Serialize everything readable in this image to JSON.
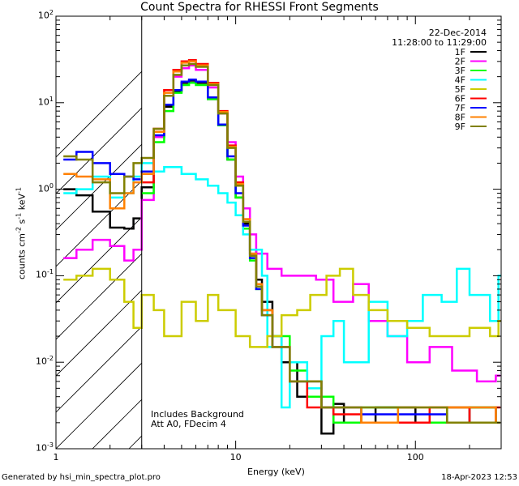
{
  "chart_data": {
    "type": "line",
    "title": "Count Spectra for RHESSI Front Segments",
    "xlabel": "Energy (keV)",
    "ylabel_parts": {
      "base": "counts cm",
      "exp1": "-2",
      "mid": " s",
      "exp2": "-1",
      "end": " keV",
      "exp3": "-1"
    },
    "xscale": "log",
    "yscale": "log",
    "xlim": [
      1,
      300
    ],
    "ylim": [
      0.001,
      100
    ],
    "x_ticks": [
      {
        "v": 1,
        "label": "1"
      },
      {
        "v": 10,
        "label": "10"
      },
      {
        "v": 100,
        "label": "100"
      }
    ],
    "y_ticks": [
      {
        "v": 0.001,
        "base": "10",
        "exp": "-3"
      },
      {
        "v": 0.01,
        "base": "10",
        "exp": "-2"
      },
      {
        "v": 0.1,
        "base": "10",
        "exp": "-1"
      },
      {
        "v": 1,
        "base": "10",
        "exp": "0"
      },
      {
        "v": 10,
        "base": "10",
        "exp": "1"
      },
      {
        "v": 100,
        "base": "10",
        "exp": "2"
      }
    ],
    "hatched_region_keV": [
      1,
      3
    ],
    "legend_position": "top-right",
    "series": [
      {
        "name": "1F",
        "color": "#000000",
        "values": [
          [
            1.1,
            1.0
          ],
          [
            1.3,
            0.85
          ],
          [
            1.6,
            0.55
          ],
          [
            2.0,
            0.36
          ],
          [
            2.4,
            0.35
          ],
          [
            2.7,
            0.46
          ],
          [
            3.0,
            1.05
          ],
          [
            3.5,
            4.0
          ],
          [
            4.0,
            9.0
          ],
          [
            4.5,
            13.5
          ],
          [
            5.0,
            17.0
          ],
          [
            5.5,
            18.0
          ],
          [
            6.0,
            17.0
          ],
          [
            7.0,
            11.0
          ],
          [
            8.0,
            5.5
          ],
          [
            9.0,
            2.2
          ],
          [
            10.0,
            0.8
          ],
          [
            11.0,
            0.4
          ],
          [
            12.0,
            0.2
          ],
          [
            13.0,
            0.09
          ],
          [
            14.0,
            0.05
          ],
          [
            16.0,
            0.02
          ],
          [
            18.0,
            0.01
          ],
          [
            22.0,
            0.004
          ],
          [
            30.0,
            0.0015
          ],
          [
            35.0,
            0.0033
          ],
          [
            40.0,
            0.002
          ],
          [
            60.0,
            0.003
          ],
          [
            100.0,
            0.002
          ],
          [
            200.0,
            0.003
          ],
          [
            280.0,
            0.002
          ]
        ]
      },
      {
        "name": "2F",
        "color": "#ff00ff",
        "values": [
          [
            1.1,
            0.16
          ],
          [
            1.3,
            0.2
          ],
          [
            1.6,
            0.26
          ],
          [
            2.0,
            0.22
          ],
          [
            2.4,
            0.15
          ],
          [
            2.7,
            0.2
          ],
          [
            3.0,
            0.75
          ],
          [
            3.5,
            4.0
          ],
          [
            4.0,
            12.0
          ],
          [
            4.5,
            20.0
          ],
          [
            5.0,
            25.0
          ],
          [
            5.5,
            27.0
          ],
          [
            6.0,
            24.0
          ],
          [
            7.0,
            15.0
          ],
          [
            8.0,
            7.5
          ],
          [
            9.0,
            3.5
          ],
          [
            10.0,
            1.4
          ],
          [
            11.0,
            0.6
          ],
          [
            12.0,
            0.3
          ],
          [
            13.0,
            0.18
          ],
          [
            15.0,
            0.12
          ],
          [
            18.0,
            0.1
          ],
          [
            22.0,
            0.1
          ],
          [
            28.0,
            0.09
          ],
          [
            35.0,
            0.05
          ],
          [
            45.0,
            0.08
          ],
          [
            55.0,
            0.03
          ],
          [
            70.0,
            0.02
          ],
          [
            90.0,
            0.01
          ],
          [
            120.0,
            0.015
          ],
          [
            160.0,
            0.008
          ],
          [
            220.0,
            0.006
          ],
          [
            280.0,
            0.007
          ]
        ]
      },
      {
        "name": "3F",
        "color": "#00ff00",
        "values": [
          [
            3.0,
            0.9
          ],
          [
            3.5,
            3.5
          ],
          [
            4.0,
            8.0
          ],
          [
            4.5,
            13.0
          ],
          [
            5.0,
            16.0
          ],
          [
            5.5,
            17.0
          ],
          [
            6.0,
            16.0
          ],
          [
            7.0,
            11.0
          ],
          [
            8.0,
            5.5
          ],
          [
            9.0,
            2.2
          ],
          [
            10.0,
            0.8
          ],
          [
            11.0,
            0.35
          ],
          [
            12.0,
            0.15
          ],
          [
            13.0,
            0.07
          ],
          [
            14.0,
            0.04
          ],
          [
            16.0,
            0.02
          ],
          [
            20.0,
            0.008
          ],
          [
            25.0,
            0.004
          ],
          [
            35.0,
            0.002
          ],
          [
            50.0,
            0.003
          ],
          [
            80.0,
            0.002
          ],
          [
            150.0,
            0.003
          ],
          [
            280.0,
            0.002
          ]
        ]
      },
      {
        "name": "4F",
        "color": "#00ffff",
        "values": [
          [
            1.1,
            0.9
          ],
          [
            1.3,
            1.0
          ],
          [
            1.6,
            1.4
          ],
          [
            2.0,
            0.8
          ],
          [
            2.4,
            0.9
          ],
          [
            2.7,
            1.4
          ],
          [
            3.0,
            2.0
          ],
          [
            3.5,
            1.6
          ],
          [
            4.0,
            1.8
          ],
          [
            5.0,
            1.5
          ],
          [
            6.0,
            1.3
          ],
          [
            7.0,
            1.1
          ],
          [
            8.0,
            0.9
          ],
          [
            9.0,
            0.7
          ],
          [
            10.0,
            0.5
          ],
          [
            11.0,
            0.3
          ],
          [
            12.0,
            0.2
          ],
          [
            13.0,
            0.2
          ],
          [
            14.0,
            0.1
          ],
          [
            15.0,
            0.015
          ],
          [
            16.0,
            0.02
          ],
          [
            18.0,
            0.003
          ],
          [
            20.0,
            0.01
          ],
          [
            25.0,
            0.005
          ],
          [
            30.0,
            0.02
          ],
          [
            35.0,
            0.03
          ],
          [
            40.0,
            0.01
          ],
          [
            55.0,
            0.05
          ],
          [
            70.0,
            0.02
          ],
          [
            90.0,
            0.03
          ],
          [
            110.0,
            0.06
          ],
          [
            140.0,
            0.05
          ],
          [
            170.0,
            0.12
          ],
          [
            200.0,
            0.06
          ],
          [
            260.0,
            0.03
          ],
          [
            290.0,
            0.1
          ]
        ]
      },
      {
        "name": "5F",
        "color": "#cccc00",
        "values": [
          [
            1.1,
            0.09
          ],
          [
            1.3,
            0.1
          ],
          [
            1.6,
            0.12
          ],
          [
            2.0,
            0.09
          ],
          [
            2.4,
            0.05
          ],
          [
            2.7,
            0.025
          ],
          [
            3.0,
            0.06
          ],
          [
            3.5,
            0.04
          ],
          [
            4.0,
            0.02
          ],
          [
            5.0,
            0.05
          ],
          [
            6.0,
            0.03
          ],
          [
            7.0,
            0.06
          ],
          [
            8.0,
            0.04
          ],
          [
            10.0,
            0.02
          ],
          [
            12.0,
            0.015
          ],
          [
            15.0,
            0.02
          ],
          [
            18.0,
            0.035
          ],
          [
            22.0,
            0.04
          ],
          [
            26.0,
            0.06
          ],
          [
            32.0,
            0.1
          ],
          [
            38.0,
            0.12
          ],
          [
            45.0,
            0.06
          ],
          [
            55.0,
            0.04
          ],
          [
            70.0,
            0.03
          ],
          [
            90.0,
            0.025
          ],
          [
            120.0,
            0.02
          ],
          [
            160.0,
            0.02
          ],
          [
            200.0,
            0.025
          ],
          [
            260.0,
            0.02
          ],
          [
            290.0,
            0.03
          ]
        ]
      },
      {
        "name": "6F",
        "color": "#ff0000",
        "values": [
          [
            3.0,
            1.2
          ],
          [
            3.5,
            5.0
          ],
          [
            4.0,
            14.0
          ],
          [
            4.5,
            24.0
          ],
          [
            5.0,
            30.0
          ],
          [
            5.5,
            31.0
          ],
          [
            6.0,
            28.0
          ],
          [
            7.0,
            17.0
          ],
          [
            8.0,
            8.0
          ],
          [
            9.0,
            3.2
          ],
          [
            10.0,
            1.2
          ],
          [
            11.0,
            0.45
          ],
          [
            12.0,
            0.18
          ],
          [
            13.0,
            0.08
          ],
          [
            14.0,
            0.04
          ],
          [
            16.0,
            0.015
          ],
          [
            20.0,
            0.006
          ],
          [
            25.0,
            0.003
          ],
          [
            35.0,
            0.0025
          ],
          [
            50.0,
            0.002
          ],
          [
            80.0,
            0.002
          ],
          [
            120.0,
            0.003
          ],
          [
            200.0,
            0.002
          ],
          [
            280.0,
            0.003
          ]
        ]
      },
      {
        "name": "7F",
        "color": "#0000ff",
        "values": [
          [
            1.1,
            2.2
          ],
          [
            1.3,
            2.7
          ],
          [
            1.6,
            2.0
          ],
          [
            2.0,
            1.5
          ],
          [
            2.4,
            1.4
          ],
          [
            2.7,
            1.3
          ],
          [
            3.0,
            1.6
          ],
          [
            3.5,
            4.2
          ],
          [
            4.0,
            9.5
          ],
          [
            4.5,
            14.0
          ],
          [
            5.0,
            17.5
          ],
          [
            5.5,
            18.5
          ],
          [
            6.0,
            17.5
          ],
          [
            7.0,
            11.5
          ],
          [
            8.0,
            5.6
          ],
          [
            9.0,
            2.4
          ],
          [
            10.0,
            0.9
          ],
          [
            11.0,
            0.38
          ],
          [
            12.0,
            0.16
          ],
          [
            13.0,
            0.07
          ],
          [
            14.0,
            0.035
          ],
          [
            16.0,
            0.015
          ],
          [
            20.0,
            0.006
          ],
          [
            30.0,
            0.003
          ],
          [
            50.0,
            0.0025
          ],
          [
            80.0,
            0.0025
          ],
          [
            150.0,
            0.002
          ],
          [
            280.0,
            0.002
          ]
        ]
      },
      {
        "name": "8F",
        "color": "#ff8000",
        "values": [
          [
            1.1,
            1.5
          ],
          [
            1.3,
            1.4
          ],
          [
            1.6,
            1.3
          ],
          [
            2.0,
            0.6
          ],
          [
            2.4,
            0.9
          ],
          [
            2.7,
            1.2
          ],
          [
            3.0,
            1.5
          ],
          [
            3.5,
            4.6
          ],
          [
            4.0,
            13.0
          ],
          [
            4.5,
            23.0
          ],
          [
            5.0,
            29.0
          ],
          [
            5.5,
            30.0
          ],
          [
            6.0,
            27.0
          ],
          [
            7.0,
            16.5
          ],
          [
            8.0,
            7.8
          ],
          [
            9.0,
            3.1
          ],
          [
            10.0,
            1.15
          ],
          [
            11.0,
            0.45
          ],
          [
            12.0,
            0.18
          ],
          [
            13.0,
            0.08
          ],
          [
            14.0,
            0.04
          ],
          [
            16.0,
            0.015
          ],
          [
            20.0,
            0.006
          ],
          [
            30.0,
            0.003
          ],
          [
            50.0,
            0.002
          ],
          [
            80.0,
            0.003
          ],
          [
            150.0,
            0.003
          ],
          [
            280.0,
            0.002
          ]
        ]
      },
      {
        "name": "9F",
        "color": "#808000",
        "values": [
          [
            1.1,
            2.4
          ],
          [
            1.3,
            2.2
          ],
          [
            1.6,
            1.2
          ],
          [
            2.0,
            0.9
          ],
          [
            2.4,
            1.4
          ],
          [
            2.7,
            2.0
          ],
          [
            3.0,
            2.3
          ],
          [
            3.5,
            5.0
          ],
          [
            4.0,
            12.0
          ],
          [
            4.5,
            21.0
          ],
          [
            5.0,
            27.0
          ],
          [
            5.5,
            28.0
          ],
          [
            6.0,
            26.0
          ],
          [
            7.0,
            16.0
          ],
          [
            8.0,
            7.5
          ],
          [
            9.0,
            3.0
          ],
          [
            10.0,
            1.1
          ],
          [
            11.0,
            0.42
          ],
          [
            12.0,
            0.17
          ],
          [
            13.0,
            0.075
          ],
          [
            14.0,
            0.035
          ],
          [
            16.0,
            0.015
          ],
          [
            20.0,
            0.006
          ],
          [
            30.0,
            0.003
          ],
          [
            50.0,
            0.003
          ],
          [
            80.0,
            0.003
          ],
          [
            150.0,
            0.002
          ],
          [
            280.0,
            0.002
          ]
        ]
      }
    ],
    "annotations": {
      "date": "22-Dec-2014",
      "time_range": "11:28:00 to 11:29:00",
      "note_line1": "Includes Background",
      "note_line2": "Att A0, FDecim 4"
    }
  },
  "footer": {
    "generated_by": "Generated by hsi_min_spectra_plot.pro",
    "timestamp": "18-Apr-2023 12:53"
  }
}
